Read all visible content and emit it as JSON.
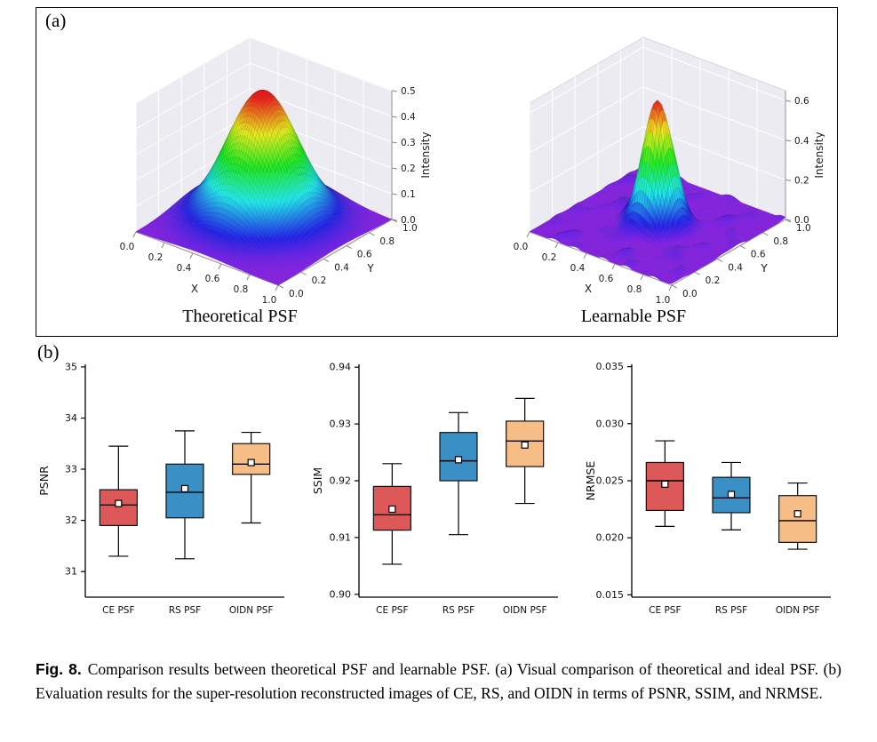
{
  "figure": {
    "panel_a_label": "(a)",
    "panel_b_label": "(b)"
  },
  "caption": {
    "tag": "Fig. 8.",
    "text": "Comparison results between theoretical PSF and learnable PSF. (a) Visual comparison of theoretical and ideal PSF. (b) Evaluation results for the super-resolution reconstructed images of CE, RS, and OIDN in terms of PSNR, SSIM, and NRMSE."
  },
  "chart_data": [
    {
      "type": "surface",
      "title": "Theoretical PSF",
      "xlabel": "X",
      "ylabel": "Y",
      "zlabel": "Intensity",
      "x_ticks": [
        "0.0",
        "0.2",
        "0.4",
        "0.6",
        "0.8",
        "1.0"
      ],
      "y_ticks": [
        "0.0",
        "0.2",
        "0.4",
        "0.6",
        "0.8",
        "1.0"
      ],
      "z_ticks": [
        "0.0",
        "0.1",
        "0.2",
        "0.3",
        "0.4",
        "0.5"
      ],
      "xlim": [
        0,
        1
      ],
      "ylim": [
        0,
        1
      ],
      "zlim": [
        0,
        0.5
      ],
      "colormap": "rainbow",
      "surface_model": {
        "shape": "gaussian",
        "peak": 0.5,
        "sigma": 0.2,
        "center_x": 0.45,
        "center_y": 0.55,
        "ripple": 0
      }
    },
    {
      "type": "surface",
      "title": "Learnable PSF",
      "xlabel": "X",
      "ylabel": "Y",
      "zlabel": "Intensity",
      "x_ticks": [
        "0.0",
        "0.2",
        "0.4",
        "0.6",
        "0.8",
        "1.0"
      ],
      "y_ticks": [
        "0.0",
        "0.2",
        "0.4",
        "0.6",
        "0.8",
        "1.0"
      ],
      "z_ticks": [
        "0.0",
        "0.2",
        "0.4",
        "0.6"
      ],
      "xlim": [
        0,
        1
      ],
      "ylim": [
        0,
        1
      ],
      "zlim": [
        0,
        0.65
      ],
      "colormap": "rainbow",
      "surface_model": {
        "shape": "gaussian",
        "peak": 0.63,
        "sigma": 0.085,
        "center_x": 0.5,
        "center_y": 0.5,
        "ripple": 0.03
      }
    },
    {
      "type": "box",
      "ylabel": "PSNR",
      "ylim": [
        30.5,
        35.05
      ],
      "yticks": [
        31,
        32,
        33,
        34,
        35
      ],
      "ytick_labels": [
        "31",
        "32",
        "33",
        "34",
        "35"
      ],
      "categories": [
        "CE PSF",
        "RS PSF",
        "OIDN PSF"
      ],
      "boxes": [
        {
          "label": "CE PSF",
          "whisker_low": 31.3,
          "q1": 31.9,
          "median": 32.3,
          "mean": 32.33,
          "q3": 32.6,
          "whisker_high": 33.45,
          "color": "#dd5959"
        },
        {
          "label": "RS PSF",
          "whisker_low": 31.25,
          "q1": 32.05,
          "median": 32.55,
          "mean": 32.62,
          "q3": 33.1,
          "whisker_high": 33.75,
          "color": "#3a8fc4"
        },
        {
          "label": "OIDN PSF",
          "whisker_low": 31.95,
          "q1": 32.9,
          "median": 33.1,
          "mean": 33.13,
          "q3": 33.5,
          "whisker_high": 33.72,
          "color": "#f6bd87"
        }
      ]
    },
    {
      "type": "box",
      "ylabel": "SSIM",
      "ylim": [
        0.8995,
        0.9405
      ],
      "yticks": [
        0.9,
        0.91,
        0.92,
        0.93,
        0.94
      ],
      "ytick_labels": [
        "0.90",
        "0.91",
        "0.92",
        "0.93",
        "0.94"
      ],
      "categories": [
        "CE PSF",
        "RS PSF",
        "OIDN PSF"
      ],
      "boxes": [
        {
          "label": "CE PSF",
          "whisker_low": 0.9053,
          "q1": 0.9113,
          "median": 0.914,
          "mean": 0.915,
          "q3": 0.919,
          "whisker_high": 0.923,
          "color": "#dd5959"
        },
        {
          "label": "RS PSF",
          "whisker_low": 0.9105,
          "q1": 0.92,
          "median": 0.9235,
          "mean": 0.9237,
          "q3": 0.9285,
          "whisker_high": 0.932,
          "color": "#3a8fc4"
        },
        {
          "label": "OIDN PSF",
          "whisker_low": 0.916,
          "q1": 0.9225,
          "median": 0.927,
          "mean": 0.9263,
          "q3": 0.9305,
          "whisker_high": 0.9345,
          "color": "#f6bd87"
        }
      ]
    },
    {
      "type": "box",
      "ylabel": "NRMSE",
      "ylim": [
        0.0148,
        0.0352
      ],
      "yticks": [
        0.015,
        0.02,
        0.025,
        0.03,
        0.035
      ],
      "ytick_labels": [
        "0.015",
        "0.020",
        "0.025",
        "0.030",
        "0.035"
      ],
      "categories": [
        "CE PSF",
        "RS PSF",
        "OIDN PSF"
      ],
      "boxes": [
        {
          "label": "CE PSF",
          "whisker_low": 0.021,
          "q1": 0.0224,
          "median": 0.025,
          "mean": 0.0247,
          "q3": 0.0266,
          "whisker_high": 0.0285,
          "color": "#dd5959"
        },
        {
          "label": "RS PSF",
          "whisker_low": 0.0207,
          "q1": 0.0222,
          "median": 0.0235,
          "mean": 0.0238,
          "q3": 0.0253,
          "whisker_high": 0.0266,
          "color": "#3a8fc4"
        },
        {
          "label": "OIDN PSF",
          "whisker_low": 0.019,
          "q1": 0.0196,
          "median": 0.0215,
          "mean": 0.0221,
          "q3": 0.0237,
          "whisker_high": 0.0248,
          "color": "#f6bd87"
        }
      ]
    }
  ]
}
